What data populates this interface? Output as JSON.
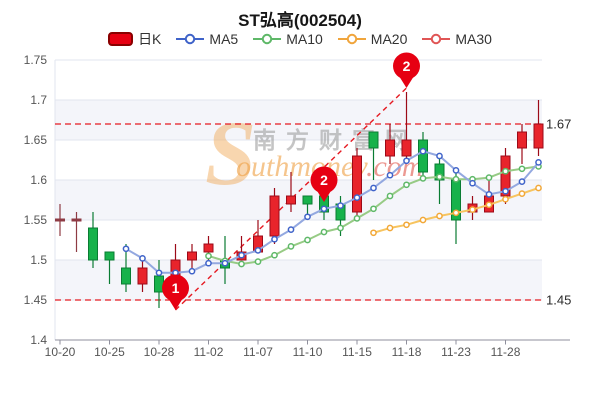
{
  "title": "ST弘高(002504)",
  "legend": {
    "items": [
      {
        "label": "日K",
        "type": "candle",
        "fill": "#e60012",
        "border": "#8a0000"
      },
      {
        "label": "MA5",
        "type": "line",
        "color": "#3f63c9"
      },
      {
        "label": "MA10",
        "type": "line",
        "color": "#5eb868"
      },
      {
        "label": "MA20",
        "type": "line",
        "color": "#f0a53c"
      },
      {
        "label": "MA30",
        "type": "line",
        "color": "#e05555"
      }
    ]
  },
  "axes": {
    "y_tick_labels": [
      "1.75",
      "1.7",
      "1.65",
      "1.6",
      "1.55",
      "1.5",
      "1.45",
      "1.4"
    ],
    "y_tick_values": [
      1.75,
      1.7,
      1.65,
      1.6,
      1.55,
      1.5,
      1.45,
      1.4
    ],
    "x_labels": [
      "10-20",
      "10-25",
      "10-28",
      "11-02",
      "11-07",
      "11-10",
      "11-15",
      "11-18",
      "11-23",
      "11-28"
    ],
    "x_label_indices": [
      0,
      3,
      6,
      9,
      12,
      15,
      18,
      21,
      24,
      27
    ]
  },
  "reference_lines": [
    {
      "value": 1.67,
      "label": "1.67"
    },
    {
      "value": 1.45,
      "label": "1.45"
    }
  ],
  "markers": [
    {
      "label": "1",
      "date": "10-31",
      "value": 1.4375
    },
    {
      "label": "2",
      "date": "11-11",
      "value": 1.5725
    },
    {
      "label": "2",
      "date": "11-18",
      "value": 1.715
    }
  ],
  "trendline": {
    "from_date": "10-31",
    "from_value": 1.4375,
    "to_date": "11-18",
    "to_value": 1.715
  },
  "watermark": {
    "logo_letter": "S",
    "cn": "南方财富网",
    "en": "outhmoney",
    "suffix": ".com"
  },
  "colors": {
    "up": "#e8242b",
    "up_border": "#9c0a18",
    "down": "#17b24b",
    "down_border": "#0a7c33",
    "flat": "#8e3b44",
    "dashed": "#e51a22",
    "marker": "#e60012",
    "grid": "#e2e5ef",
    "band": "#f4f5fa",
    "axis_text": "#555555",
    "axis_line": "#8f8f9c"
  },
  "chart_data": {
    "type": "candlestick",
    "title": "ST弘高(002504)",
    "ylim": [
      1.4,
      1.75
    ],
    "dates": [
      "10-20",
      "10-21",
      "10-24",
      "10-25",
      "10-26",
      "10-27",
      "10-28",
      "10-31",
      "11-01",
      "11-02",
      "11-03",
      "11-04",
      "11-07",
      "11-08",
      "11-09",
      "11-10",
      "11-11",
      "11-14",
      "11-15",
      "11-16",
      "11-17",
      "11-18",
      "11-21",
      "11-22",
      "11-23",
      "11-24",
      "11-25",
      "11-28",
      "11-29",
      "11-30"
    ],
    "candles": [
      {
        "date": "10-20",
        "open": 1.55,
        "close": 1.55,
        "high": 1.57,
        "low": 1.53,
        "dir": "flat"
      },
      {
        "date": "10-21",
        "open": 1.55,
        "close": 1.55,
        "high": 1.56,
        "low": 1.51,
        "dir": "flat"
      },
      {
        "date": "10-24",
        "open": 1.54,
        "close": 1.5,
        "high": 1.56,
        "low": 1.49,
        "dir": "down"
      },
      {
        "date": "10-25",
        "open": 1.51,
        "close": 1.5,
        "high": 1.51,
        "low": 1.47,
        "dir": "down"
      },
      {
        "date": "10-26",
        "open": 1.49,
        "close": 1.47,
        "high": 1.52,
        "low": 1.46,
        "dir": "down"
      },
      {
        "date": "10-27",
        "open": 1.47,
        "close": 1.49,
        "high": 1.5,
        "low": 1.46,
        "dir": "up"
      },
      {
        "date": "10-28",
        "open": 1.48,
        "close": 1.46,
        "high": 1.5,
        "low": 1.44,
        "dir": "down"
      },
      {
        "date": "10-31",
        "open": 1.48,
        "close": 1.5,
        "high": 1.52,
        "low": 1.47,
        "dir": "up"
      },
      {
        "date": "11-01",
        "open": 1.5,
        "close": 1.51,
        "high": 1.52,
        "low": 1.49,
        "dir": "up"
      },
      {
        "date": "11-02",
        "open": 1.51,
        "close": 1.52,
        "high": 1.53,
        "low": 1.5,
        "dir": "up"
      },
      {
        "date": "11-03",
        "open": 1.5,
        "close": 1.49,
        "high": 1.53,
        "low": 1.47,
        "dir": "down"
      },
      {
        "date": "11-04",
        "open": 1.5,
        "close": 1.51,
        "high": 1.53,
        "low": 1.5,
        "dir": "up"
      },
      {
        "date": "11-07",
        "open": 1.51,
        "close": 1.53,
        "high": 1.55,
        "low": 1.51,
        "dir": "up"
      },
      {
        "date": "11-08",
        "open": 1.53,
        "close": 1.58,
        "high": 1.59,
        "low": 1.52,
        "dir": "up"
      },
      {
        "date": "11-09",
        "open": 1.57,
        "close": 1.58,
        "high": 1.61,
        "low": 1.56,
        "dir": "up"
      },
      {
        "date": "11-10",
        "open": 1.58,
        "close": 1.57,
        "high": 1.58,
        "low": 1.55,
        "dir": "down"
      },
      {
        "date": "11-11",
        "open": 1.58,
        "close": 1.56,
        "high": 1.58,
        "low": 1.55,
        "dir": "down"
      },
      {
        "date": "11-14",
        "open": 1.57,
        "close": 1.55,
        "high": 1.58,
        "low": 1.53,
        "dir": "down"
      },
      {
        "date": "11-15",
        "open": 1.56,
        "close": 1.63,
        "high": 1.64,
        "low": 1.55,
        "dir": "up"
      },
      {
        "date": "11-16",
        "open": 1.66,
        "close": 1.64,
        "high": 1.66,
        "low": 1.6,
        "dir": "down"
      },
      {
        "date": "11-17",
        "open": 1.63,
        "close": 1.65,
        "high": 1.67,
        "low": 1.62,
        "dir": "up"
      },
      {
        "date": "11-18",
        "open": 1.63,
        "close": 1.65,
        "high": 1.71,
        "low": 1.62,
        "dir": "up"
      },
      {
        "date": "11-21",
        "open": 1.65,
        "close": 1.61,
        "high": 1.66,
        "low": 1.6,
        "dir": "down"
      },
      {
        "date": "11-22",
        "open": 1.62,
        "close": 1.6,
        "high": 1.63,
        "low": 1.57,
        "dir": "down"
      },
      {
        "date": "11-23",
        "open": 1.6,
        "close": 1.55,
        "high": 1.61,
        "low": 1.52,
        "dir": "down"
      },
      {
        "date": "11-24",
        "open": 1.56,
        "close": 1.57,
        "high": 1.58,
        "low": 1.55,
        "dir": "up"
      },
      {
        "date": "11-25",
        "open": 1.56,
        "close": 1.58,
        "high": 1.6,
        "low": 1.56,
        "dir": "up"
      },
      {
        "date": "11-28",
        "open": 1.58,
        "close": 1.63,
        "high": 1.64,
        "low": 1.57,
        "dir": "up"
      },
      {
        "date": "11-29",
        "open": 1.64,
        "close": 1.66,
        "high": 1.67,
        "low": 1.62,
        "dir": "up"
      },
      {
        "date": "11-30",
        "open": 1.64,
        "close": 1.67,
        "high": 1.7,
        "low": 1.63,
        "dir": "up"
      }
    ],
    "series": [
      {
        "name": "MA5",
        "line": "#93a8e0",
        "marker": "#3f63c9",
        "values": [
          null,
          null,
          null,
          null,
          1.514,
          1.502,
          1.484,
          1.484,
          1.486,
          1.496,
          1.496,
          1.506,
          1.512,
          1.526,
          1.538,
          1.554,
          1.564,
          1.568,
          1.578,
          1.59,
          1.606,
          1.624,
          1.636,
          1.63,
          1.612,
          1.596,
          1.582,
          1.586,
          1.598,
          1.622
        ]
      },
      {
        "name": "MA10",
        "line": "#97cb85",
        "marker": "#5eb868",
        "values": [
          null,
          null,
          null,
          null,
          null,
          null,
          null,
          null,
          null,
          1.505,
          1.499,
          1.495,
          1.498,
          1.506,
          1.517,
          1.525,
          1.535,
          1.54,
          1.552,
          1.564,
          1.58,
          1.594,
          1.602,
          1.604,
          1.601,
          1.601,
          1.603,
          1.611,
          1.614,
          1.617
        ]
      },
      {
        "name": "MA20",
        "line": "#f7c45f",
        "marker": "#f2a838",
        "values": [
          null,
          null,
          null,
          null,
          null,
          null,
          null,
          null,
          null,
          null,
          null,
          null,
          null,
          null,
          null,
          null,
          null,
          null,
          null,
          1.534,
          1.54,
          1.544,
          1.55,
          1.555,
          1.559,
          1.563,
          1.569,
          1.576,
          1.583,
          1.59
        ]
      },
      {
        "name": "MA30",
        "line": "#e05555",
        "marker": "#e05555",
        "values": [
          null,
          null,
          null,
          null,
          null,
          null,
          null,
          null,
          null,
          null,
          null,
          null,
          null,
          null,
          null,
          null,
          null,
          null,
          null,
          null,
          null,
          null,
          null,
          null,
          null,
          null,
          null,
          null,
          null,
          null
        ]
      }
    ]
  }
}
